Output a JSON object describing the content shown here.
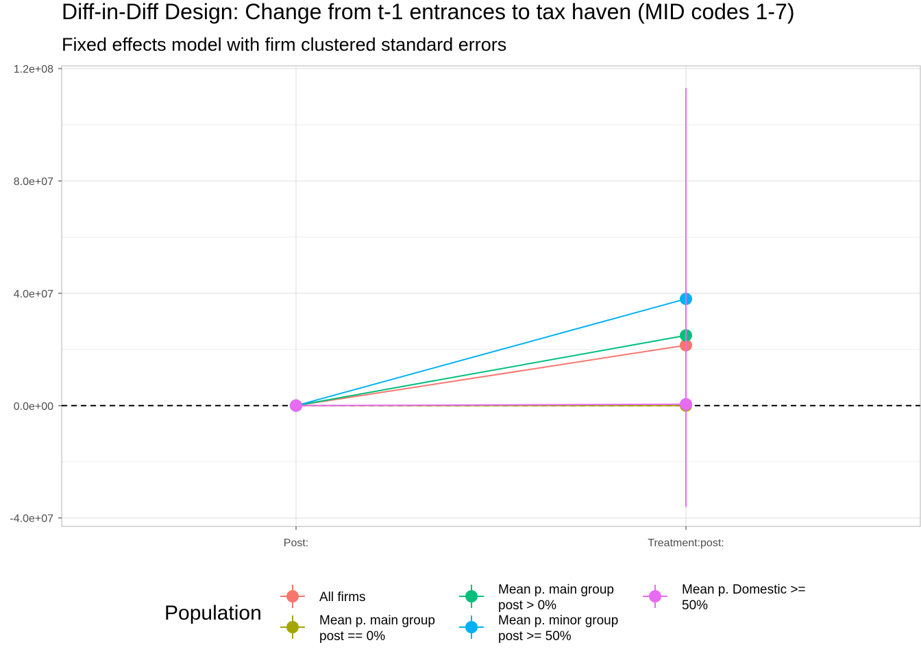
{
  "chart_data": {
    "type": "scatter",
    "title": "Diff-in-Diff Design: Change from t-1 entrances to tax haven (MID codes 1-7)",
    "subtitle": "Fixed effects model with firm clustered standard errors",
    "xlabel": "",
    "ylabel": "",
    "categories": [
      "Post:",
      "Treatment:post:"
    ],
    "ylim": [
      -43000000,
      121000000
    ],
    "y_ticks": [
      -40000000,
      0,
      40000000,
      80000000,
      120000000
    ],
    "y_tick_labels": [
      "-4.0e+07",
      "0.0e+00",
      "4.0e+07",
      "8.0e+07",
      "1.2e+08"
    ],
    "grid": true,
    "reference_line": {
      "y": 0,
      "style": "dashed",
      "color": "#000000"
    },
    "legend": {
      "title": "Population",
      "position": "bottom"
    },
    "series": [
      {
        "name": "All firms",
        "color": "#F8766D",
        "values": [
          0,
          21500000
        ],
        "ci": [
          [
            0,
            0
          ],
          [
            -36000000,
            113000000
          ]
        ]
      },
      {
        "name": "Mean p. main group post == 0%",
        "legend_lines": [
          "Mean p. main group",
          "post == 0%"
        ],
        "color": "#A3A500",
        "values": [
          0,
          0
        ],
        "ci": [
          [
            0,
            0
          ],
          [
            -36000000,
            113000000
          ]
        ]
      },
      {
        "name": "Mean p. main group post > 0%",
        "legend_lines": [
          "Mean p. main group",
          "post > 0%"
        ],
        "color": "#00BF7D",
        "values": [
          0,
          25000000
        ],
        "ci": [
          [
            0,
            0
          ],
          [
            -36000000,
            113000000
          ]
        ]
      },
      {
        "name": "Mean p. minor group post >= 50%",
        "legend_lines": [
          "Mean p. minor group",
          "post >= 50%"
        ],
        "color": "#00B0F6",
        "values": [
          0,
          38000000
        ],
        "ci": [
          [
            0,
            0
          ],
          [
            -36000000,
            113000000
          ]
        ]
      },
      {
        "name": "Mean p. Domestic >= 50%",
        "legend_lines": [
          "Mean p. Domestic >=",
          "50%"
        ],
        "color": "#E76BF3",
        "values": [
          0,
          500000
        ],
        "ci": [
          [
            0,
            0
          ],
          [
            -36000000,
            113000000
          ]
        ]
      }
    ]
  }
}
